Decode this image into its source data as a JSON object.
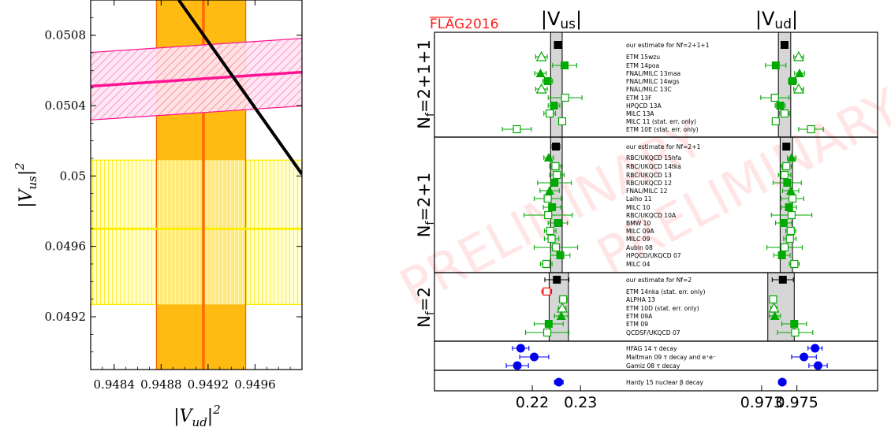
{
  "chart_data": [
    {
      "type": "band-plot",
      "xlabel": "|V_ud|^2",
      "ylabel": "|V_us|^2",
      "xlim": [
        0.9482,
        0.95
      ],
      "ylim": [
        0.0489,
        0.051
      ],
      "xticks": [
        "0.9484",
        "0.9488",
        "0.9492",
        "0.9496"
      ],
      "xtick_values": [
        0.9484,
        0.9488,
        0.9492,
        0.9496
      ],
      "yticks": [
        "0.0492",
        "0.0496",
        "0.05",
        "0.0504",
        "0.0508"
      ],
      "ytick_values": [
        0.0492,
        0.0496,
        0.05,
        0.0504,
        0.0508
      ],
      "vertical_band": {
        "center": 0.94916,
        "low": 0.94876,
        "high": 0.94952,
        "fill": "#ffbb11",
        "line": "#ff6a00"
      },
      "horizontal_band": {
        "center": 0.0497,
        "low": 0.04927,
        "high": 0.05009,
        "fill": "#ffff99",
        "line": "#ffee00"
      },
      "diagonal_band": {
        "center_y_at_xmin": 0.05051,
        "center_y_at_xmax": 0.05059,
        "half_width": 0.000192,
        "fill": "#ffb3d9",
        "line": "#ff1493"
      },
      "unitarity_line": {
        "x_start": 0.94895,
        "y_start": 0.051,
        "x_end": 0.95,
        "y_end": 0.05001,
        "color": "#000000"
      }
    },
    {
      "type": "forest",
      "watermark": "PRELIMINARY",
      "logo": "FLAG2016",
      "columns": [
        {
          "key": "vus",
          "title": "|Vus|",
          "xlim": [
            0.211,
            0.2365
          ],
          "ticks": [
            "0.22",
            "0.23"
          ],
          "tick_values": [
            0.22,
            0.23
          ],
          "band": [
            0.2238,
            0.2262
          ]
        },
        {
          "key": "vud",
          "title": "|Vud|",
          "xlim": [
            0.9705,
            0.9781
          ],
          "ticks": [
            "0.973",
            "0.975"
          ],
          "tick_values": [
            0.973,
            0.975
          ],
          "band": [
            0.97395,
            0.97465
          ]
        }
      ],
      "sections": [
        {
          "label": "Nf=2+1+1",
          "band_vus": [
            0.2238,
            0.2262
          ],
          "band_vud": [
            0.97395,
            0.97465
          ],
          "rows": [
            {
              "label": "our estimate for Nf=2+1+1",
              "style": "estimate",
              "vus": [
                0.2253,
                0.0007
              ],
              "vud": [
                0.9743,
                0.00015
              ]
            },
            {
              "label": "ETM 15wzu",
              "style": "open-triangle",
              "vus": [
                0.2219,
                0.0012
              ],
              "vud": [
                0.9751,
                0.00028
              ]
            },
            {
              "label": "ETM 14poa",
              "style": "filled-square",
              "vus": [
                0.2267,
                0.0025
              ],
              "vud": [
                0.9738,
                0.00058
              ]
            },
            {
              "label": "FNAL/MILC 13maa",
              "style": "filled-triangle",
              "vus": [
                0.2217,
                0.0012
              ],
              "vud": [
                0.97515,
                0.00028
              ]
            },
            {
              "label": "FNAL/MILC 14wgs",
              "style": "filled-square",
              "vus": [
                0.2232,
                0.001
              ],
              "vud": [
                0.97475,
                0.00023
              ]
            },
            {
              "label": "FNAL/MILC 13C",
              "style": "open-triangle",
              "vus": [
                0.2219,
                0.0012
              ],
              "vud": [
                0.9751,
                0.00028
              ]
            },
            {
              "label": "ETM 13F",
              "style": "open-square",
              "vus": [
                0.2268,
                0.0035
              ],
              "vud": [
                0.97375,
                0.0008
              ]
            },
            {
              "label": "HPQCD 13A",
              "style": "filled-square",
              "vus": [
                0.2245,
                0.0012
              ],
              "vud": [
                0.97405,
                0.00028
              ]
            },
            {
              "label": "MILC 13A",
              "style": "open-square",
              "vus": [
                0.2236,
                0.0012
              ],
              "vud": [
                0.9743,
                0.00028
              ]
            },
            {
              "label": "MILC 11 (stat. err. only)",
              "style": "open-square",
              "vus": [
                0.2262,
                0.0006
              ],
              "vud": [
                0.9738,
                0.00014
              ]
            },
            {
              "label": "ETM 10E (stat. err. only)",
              "style": "open-square",
              "vus": [
                0.2168,
                0.003
              ],
              "vud": [
                0.9758,
                0.0007
              ]
            }
          ]
        },
        {
          "label": "Nf=2+1",
          "band_vus": [
            0.2238,
            0.2262
          ],
          "band_vud": [
            0.97405,
            0.97475
          ],
          "rows": [
            {
              "label": "our estimate for Nf=2+1",
              "style": "estimate",
              "vus": [
                0.2249,
                0.0008
              ],
              "vud": [
                0.9744,
                0.00018
              ]
            },
            {
              "label": "RBC/UKQCD 15hfa",
              "style": "filled-triangle",
              "vus": [
                0.2234,
                0.001
              ],
              "vud": [
                0.9747,
                0.00024
              ]
            },
            {
              "label": "RBC/UKQCD 14tka",
              "style": "open-square",
              "vus": [
                0.2248,
                0.0012
              ],
              "vud": [
                0.9744,
                0.00028
              ]
            },
            {
              "label": "RBC/UKQCD 13",
              "style": "open-square",
              "vus": [
                0.2251,
                0.0015
              ],
              "vud": [
                0.9743,
                0.00035
              ]
            },
            {
              "label": "RBC/UKQCD 12",
              "style": "filled-square",
              "vus": [
                0.2246,
                0.0035
              ],
              "vud": [
                0.97445,
                0.0008
              ]
            },
            {
              "label": "FNAL/MILC 12",
              "style": "filled-triangle",
              "vus": [
                0.2236,
                0.002
              ],
              "vud": [
                0.97465,
                0.00046
              ]
            },
            {
              "label": "Laiho 11",
              "style": "open-square",
              "vus": [
                0.2232,
                0.0028
              ],
              "vud": [
                0.97475,
                0.00064
              ]
            },
            {
              "label": "MILC 10",
              "style": "filled-square",
              "vus": [
                0.2241,
                0.0018
              ],
              "vud": [
                0.97455,
                0.00042
              ]
            },
            {
              "label": "RBC/UKQCD 10A",
              "style": "open-square",
              "vus": [
                0.2233,
                0.005
              ],
              "vud": [
                0.9747,
                0.00115
              ]
            },
            {
              "label": "BMW 10",
              "style": "filled-square",
              "vus": [
                0.2253,
                0.002
              ],
              "vud": [
                0.97425,
                0.00046
              ]
            },
            {
              "label": "MILC 09A",
              "style": "open-square",
              "vus": [
                0.2237,
                0.0012
              ],
              "vud": [
                0.97465,
                0.00028
              ]
            },
            {
              "label": "MILC 09",
              "style": "open-square",
              "vus": [
                0.224,
                0.0015
              ],
              "vud": [
                0.9746,
                0.00035
              ]
            },
            {
              "label": "Aubin 08",
              "style": "open-square",
              "vus": [
                0.2249,
                0.0045
              ],
              "vud": [
                0.9743,
                0.001
              ]
            },
            {
              "label": "HPQCD/UKQCD 07",
              "style": "filled-square",
              "vus": [
                0.2258,
                0.002
              ],
              "vud": [
                0.97415,
                0.00046
              ]
            },
            {
              "label": "MILC 04",
              "style": "open-square",
              "vus": [
                0.2229,
                0.0012
              ],
              "vud": [
                0.97485,
                0.00028
              ]
            }
          ]
        },
        {
          "label": "Nf=2",
          "band_vus": [
            0.2235,
            0.2275
          ],
          "band_vud": [
            0.97335,
            0.97485
          ],
          "rows": [
            {
              "label": "our estimate for Nf=2",
              "style": "estimate",
              "vus": [
                0.2251,
                0.0025
              ],
              "vud": [
                0.9742,
                0.0006
              ]
            },
            {
              "label": "ETM 14nka (stat. err. only)",
              "style": "red-open-square",
              "vus": [
                0.223,
                0.001
              ],
              "vud": null
            },
            {
              "label": "ALPHA 13",
              "style": "open-square",
              "vus": [
                0.2264,
                0.0008
              ],
              "vud": [
                0.97365,
                0.00018
              ]
            },
            {
              "label": "ETM 10D (stat. err. only)",
              "style": "open-triangle",
              "vus": [
                0.2262,
                0.0008
              ],
              "vud": [
                0.9737,
                0.00018
              ]
            },
            {
              "label": "ETM 09A",
              "style": "filled-triangle",
              "vus": [
                0.226,
                0.0014
              ],
              "vud": [
                0.97375,
                0.00032
              ]
            },
            {
              "label": "ETM 09",
              "style": "filled-square",
              "vus": [
                0.2234,
                0.003
              ],
              "vud": [
                0.97485,
                0.0007
              ]
            },
            {
              "label": "QCDSF/UKQCD 07",
              "style": "open-square",
              "vus": [
                0.2231,
                0.0045
              ],
              "vud": [
                0.9749,
                0.001
              ]
            }
          ]
        },
        {
          "label": "",
          "rows": [
            {
              "label": "HFAG 14 τ decay",
              "style": "blue-circle",
              "vus": [
                0.2176,
                0.0017
              ],
              "vud": [
                0.97603,
                0.0004
              ]
            },
            {
              "label": "Maltman 09 τ decay and e⁺e⁻",
              "style": "blue-circle",
              "vus": [
                0.2204,
                0.003
              ],
              "vud": [
                0.9754,
                0.0007
              ]
            },
            {
              "label": "Gamiz 08 τ decay",
              "style": "blue-circle",
              "vus": [
                0.2169,
                0.0023
              ],
              "vud": [
                0.9762,
                0.00052
              ]
            }
          ]
        },
        {
          "label": "",
          "rows": [
            {
              "label": "Hardy 15 nuclear β decay",
              "style": "blue-circle",
              "vus": [
                0.2255,
                0.0009
              ],
              "vud": [
                0.97417,
                0.00021
              ]
            }
          ]
        }
      ]
    }
  ]
}
